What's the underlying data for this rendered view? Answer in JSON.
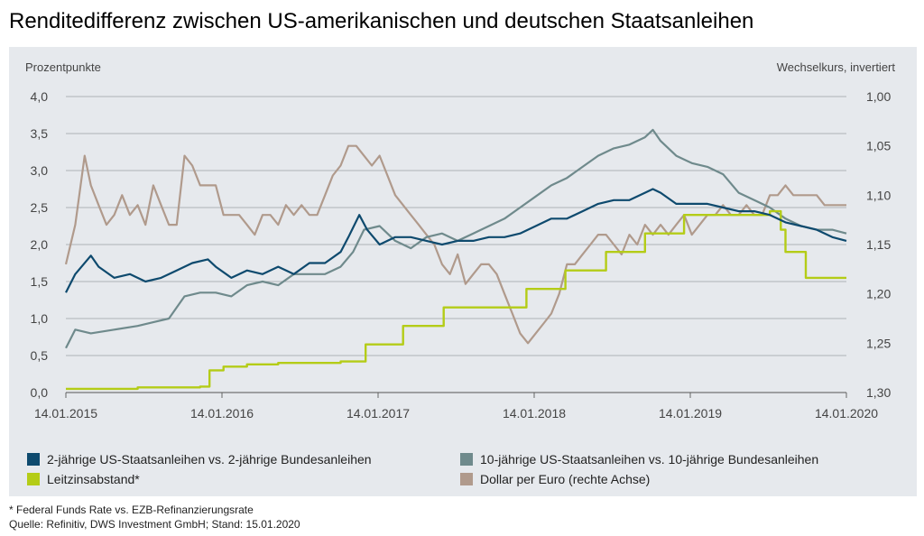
{
  "title": "Renditedifferenz zwischen US-amerikanischen und deutschen Staatsanleihen",
  "colors": {
    "us2": "#0e4a6e",
    "us10": "#6f8a8c",
    "leitzins": "#b4cc17",
    "usd": "#b09a8c",
    "background": "#e6e9ed"
  },
  "chart_data": {
    "type": "line",
    "ylabel": "Prozentpunkte",
    "y2label": "Wechselkurs, invertiert",
    "ylim": [
      0,
      4
    ],
    "y2lim": [
      1.3,
      1.0
    ],
    "y2_inverted": true,
    "yticks": [
      "4,0",
      "3,5",
      "3,0",
      "2,5",
      "2,0",
      "1,5",
      "1,0",
      "0,5",
      "0,0"
    ],
    "y2ticks": [
      "1,00",
      "1,05",
      "1,10",
      "1,15",
      "1,20",
      "1,25",
      "1,30"
    ],
    "xticks": [
      "14.01.2015",
      "14.01.2016",
      "14.01.2017",
      "14.01.2018",
      "14.01.2019",
      "14.01.2020"
    ],
    "grid": "horizontal",
    "series": [
      {
        "name": "2-jährige US-Staatsanleihen vs. 2-jährige Bundesanleihen",
        "axis": "left",
        "x": [
          2015.04,
          2015.1,
          2015.2,
          2015.25,
          2015.35,
          2015.45,
          2015.55,
          2015.65,
          2015.75,
          2015.85,
          2015.95,
          2016.0,
          2016.1,
          2016.2,
          2016.3,
          2016.4,
          2016.5,
          2016.6,
          2016.7,
          2016.8,
          2016.85,
          2016.92,
          2016.97,
          2017.05,
          2017.15,
          2017.25,
          2017.35,
          2017.45,
          2017.55,
          2017.65,
          2017.75,
          2017.85,
          2017.95,
          2018.05,
          2018.15,
          2018.25,
          2018.35,
          2018.45,
          2018.55,
          2018.65,
          2018.75,
          2018.8,
          2018.85,
          2018.95,
          2019.05,
          2019.15,
          2019.25,
          2019.35,
          2019.45,
          2019.55,
          2019.65,
          2019.75,
          2019.85,
          2019.95,
          2020.04
        ],
        "y": [
          1.35,
          1.6,
          1.85,
          1.7,
          1.55,
          1.6,
          1.5,
          1.55,
          1.65,
          1.75,
          1.8,
          1.7,
          1.55,
          1.65,
          1.6,
          1.7,
          1.6,
          1.75,
          1.75,
          1.9,
          2.1,
          2.4,
          2.2,
          2.0,
          2.1,
          2.1,
          2.05,
          2.0,
          2.05,
          2.05,
          2.1,
          2.1,
          2.15,
          2.25,
          2.35,
          2.35,
          2.45,
          2.55,
          2.6,
          2.6,
          2.7,
          2.75,
          2.7,
          2.55,
          2.55,
          2.55,
          2.5,
          2.45,
          2.45,
          2.4,
          2.3,
          2.25,
          2.2,
          2.1,
          2.05
        ]
      },
      {
        "name": "10-jährige US-Staatsanleihen vs. 10-jährige Bundesanleihen",
        "axis": "left",
        "x": [
          2015.04,
          2015.1,
          2015.2,
          2015.35,
          2015.5,
          2015.6,
          2015.7,
          2015.8,
          2015.9,
          2016.0,
          2016.1,
          2016.2,
          2016.3,
          2016.4,
          2016.5,
          2016.6,
          2016.7,
          2016.8,
          2016.88,
          2016.95,
          2017.05,
          2017.15,
          2017.25,
          2017.35,
          2017.45,
          2017.55,
          2017.65,
          2017.75,
          2017.85,
          2017.95,
          2018.05,
          2018.15,
          2018.25,
          2018.35,
          2018.45,
          2018.55,
          2018.65,
          2018.75,
          2018.8,
          2018.85,
          2018.95,
          2019.05,
          2019.15,
          2019.25,
          2019.35,
          2019.45,
          2019.55,
          2019.65,
          2019.75,
          2019.85,
          2019.95,
          2020.04
        ],
        "y": [
          0.6,
          0.85,
          0.8,
          0.85,
          0.9,
          0.95,
          1.0,
          1.3,
          1.35,
          1.35,
          1.3,
          1.45,
          1.5,
          1.45,
          1.6,
          1.6,
          1.6,
          1.7,
          1.9,
          2.2,
          2.25,
          2.05,
          1.95,
          2.1,
          2.15,
          2.05,
          2.15,
          2.25,
          2.35,
          2.5,
          2.65,
          2.8,
          2.9,
          3.05,
          3.2,
          3.3,
          3.35,
          3.45,
          3.55,
          3.4,
          3.2,
          3.1,
          3.05,
          2.95,
          2.7,
          2.6,
          2.5,
          2.35,
          2.25,
          2.2,
          2.2,
          2.15
        ]
      },
      {
        "name": "Leitzinsabstand*",
        "axis": "left",
        "x": [
          2015.04,
          2015.5,
          2015.9,
          2015.96,
          2016.05,
          2016.2,
          2016.4,
          2016.6,
          2016.8,
          2016.92,
          2016.96,
          2017.18,
          2017.2,
          2017.42,
          2017.46,
          2017.95,
          2017.99,
          2018.2,
          2018.24,
          2018.46,
          2018.5,
          2018.72,
          2018.75,
          2018.96,
          2019.0,
          2019.5,
          2019.55,
          2019.62,
          2019.65,
          2019.75,
          2019.78,
          2020.04
        ],
        "y": [
          0.05,
          0.07,
          0.08,
          0.3,
          0.35,
          0.38,
          0.4,
          0.4,
          0.42,
          0.42,
          0.65,
          0.65,
          0.9,
          0.9,
          1.15,
          1.15,
          1.4,
          1.4,
          1.65,
          1.65,
          1.9,
          1.9,
          2.15,
          2.15,
          2.4,
          2.4,
          2.45,
          2.2,
          1.9,
          1.9,
          1.55,
          1.55
        ]
      },
      {
        "name": "Dollar per Euro (rechte Achse)",
        "axis": "right",
        "x": [
          2015.04,
          2015.1,
          2015.16,
          2015.2,
          2015.25,
          2015.3,
          2015.35,
          2015.4,
          2015.45,
          2015.5,
          2015.55,
          2015.6,
          2015.65,
          2015.7,
          2015.75,
          2015.8,
          2015.85,
          2015.9,
          2015.95,
          2016.0,
          2016.05,
          2016.1,
          2016.15,
          2016.2,
          2016.25,
          2016.3,
          2016.35,
          2016.4,
          2016.45,
          2016.5,
          2016.55,
          2016.6,
          2016.65,
          2016.7,
          2016.75,
          2016.8,
          2016.85,
          2016.9,
          2016.95,
          2017.0,
          2017.05,
          2017.1,
          2017.15,
          2017.2,
          2017.25,
          2017.3,
          2017.35,
          2017.4,
          2017.45,
          2017.5,
          2017.55,
          2017.6,
          2017.65,
          2017.7,
          2017.75,
          2017.8,
          2017.85,
          2017.9,
          2017.95,
          2018.0,
          2018.05,
          2018.1,
          2018.15,
          2018.2,
          2018.25,
          2018.3,
          2018.35,
          2018.4,
          2018.45,
          2018.5,
          2018.55,
          2018.6,
          2018.65,
          2018.7,
          2018.75,
          2018.8,
          2018.85,
          2018.9,
          2018.95,
          2019.0,
          2019.05,
          2019.1,
          2019.15,
          2019.2,
          2019.25,
          2019.3,
          2019.35,
          2019.4,
          2019.45,
          2019.5,
          2019.55,
          2019.6,
          2019.65,
          2019.7,
          2019.75,
          2019.8,
          2019.85,
          2019.9,
          2019.95,
          2020.04
        ],
        "y": [
          1.17,
          1.13,
          1.06,
          1.09,
          1.11,
          1.13,
          1.12,
          1.1,
          1.12,
          1.11,
          1.13,
          1.09,
          1.11,
          1.13,
          1.13,
          1.06,
          1.07,
          1.09,
          1.09,
          1.09,
          1.12,
          1.12,
          1.12,
          1.13,
          1.14,
          1.12,
          1.12,
          1.13,
          1.11,
          1.12,
          1.11,
          1.12,
          1.12,
          1.1,
          1.08,
          1.07,
          1.05,
          1.05,
          1.06,
          1.07,
          1.06,
          1.08,
          1.1,
          1.11,
          1.12,
          1.13,
          1.14,
          1.15,
          1.17,
          1.18,
          1.16,
          1.19,
          1.18,
          1.17,
          1.17,
          1.18,
          1.2,
          1.22,
          1.24,
          1.25,
          1.24,
          1.23,
          1.22,
          1.2,
          1.17,
          1.17,
          1.16,
          1.15,
          1.14,
          1.14,
          1.15,
          1.16,
          1.14,
          1.15,
          1.13,
          1.14,
          1.13,
          1.14,
          1.13,
          1.12,
          1.14,
          1.13,
          1.12,
          1.12,
          1.11,
          1.12,
          1.12,
          1.11,
          1.12,
          1.12,
          1.1,
          1.1,
          1.09,
          1.1,
          1.1,
          1.1,
          1.1,
          1.11,
          1.11,
          1.11
        ]
      }
    ]
  },
  "legend": {
    "item1": "2-jährige US-Staatsanleihen vs. 2-jährige Bundesanleihen",
    "item2": "10-jährige US-Staatsanleihen vs. 10-jährige Bundesanleihen",
    "item3": "Leitzinsabstand*",
    "item4": "Dollar per Euro (rechte Achse)"
  },
  "footnote": "* Federal Funds Rate vs. EZB-Refinanzierungsrate",
  "source": "Quelle: Refinitiv, DWS Investment GmbH; Stand: 15.01.2020"
}
